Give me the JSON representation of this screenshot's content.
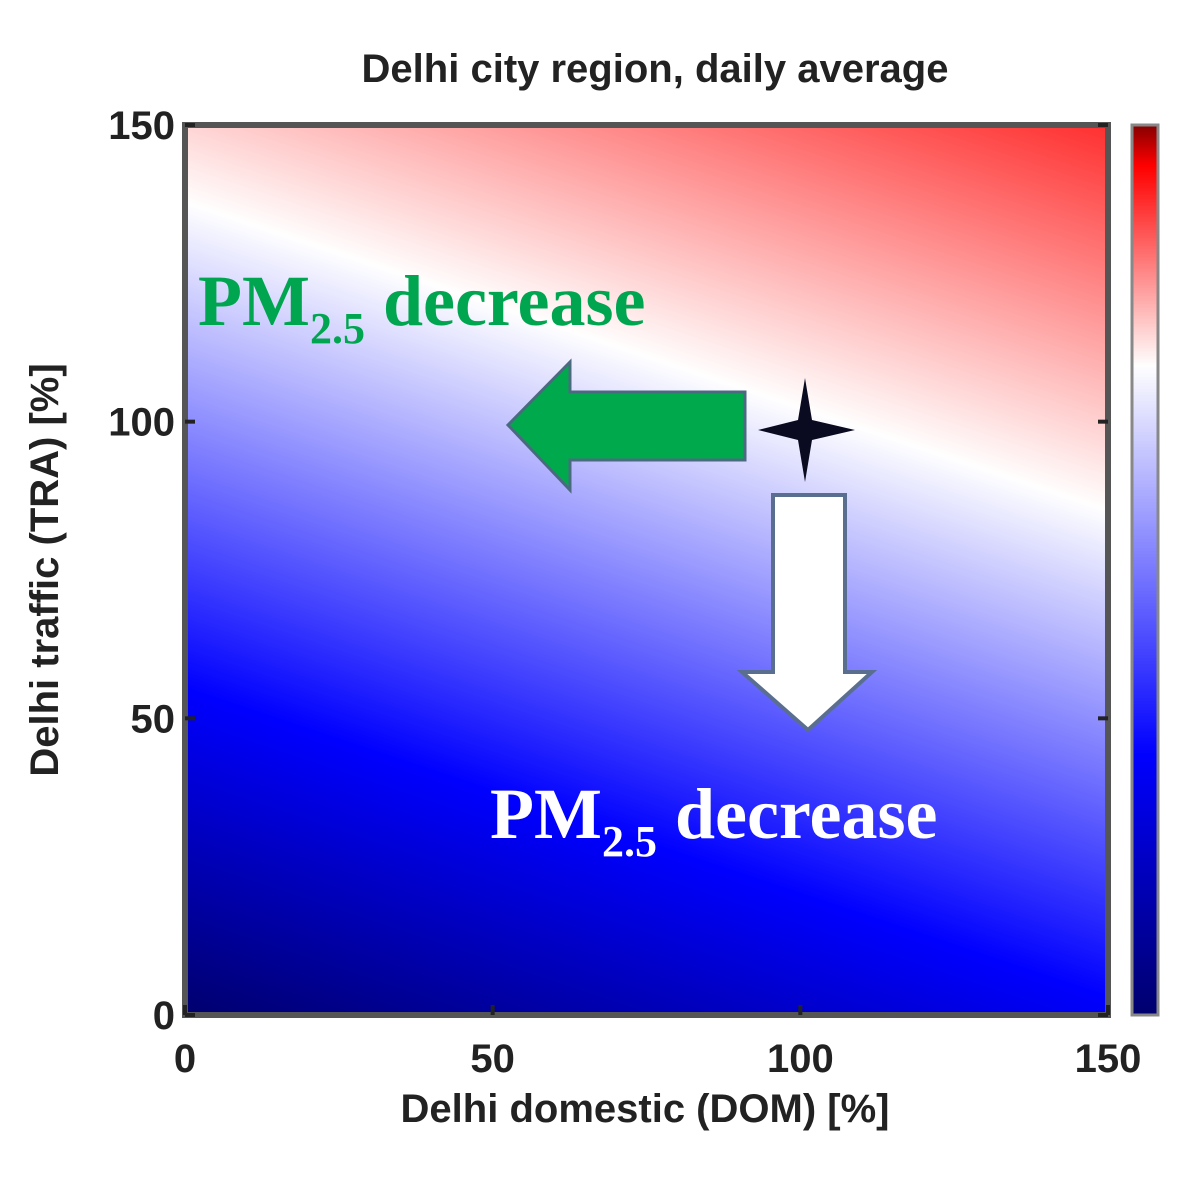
{
  "chart_data": {
    "type": "heatmap",
    "title": "Delhi city region, daily average",
    "xlabel": "Delhi domestic (DOM)  [%]",
    "ylabel": "Delhi traffic (TRA) [%]",
    "xlim": [
      0,
      150
    ],
    "ylim": [
      0,
      150
    ],
    "xticks": [
      "0",
      "50",
      "100",
      "150"
    ],
    "yticks": [
      "0",
      "50",
      "100",
      "150"
    ],
    "colormap": "blue-white-red",
    "colors": {
      "low": "#00006e",
      "mid": "#ffffff",
      "high": "#ff0000",
      "annotation_green": "#00a550"
    },
    "zero_contour": [
      [
        0,
        137
      ],
      [
        150,
        85
      ]
    ],
    "marker": {
      "x": 100,
      "y": 100,
      "symbol": "star"
    },
    "annotations": [
      {
        "text": "PM",
        "subscript": "2.5",
        "suffix": " decrease",
        "color": "green",
        "arrow": "left",
        "from": [
          90,
          100
        ],
        "to": [
          52,
          100
        ]
      },
      {
        "text": "PM",
        "subscript": "2.5",
        "suffix": " decrease",
        "color": "white",
        "arrow": "down",
        "from": [
          100,
          88
        ],
        "to": [
          100,
          48
        ]
      }
    ]
  }
}
